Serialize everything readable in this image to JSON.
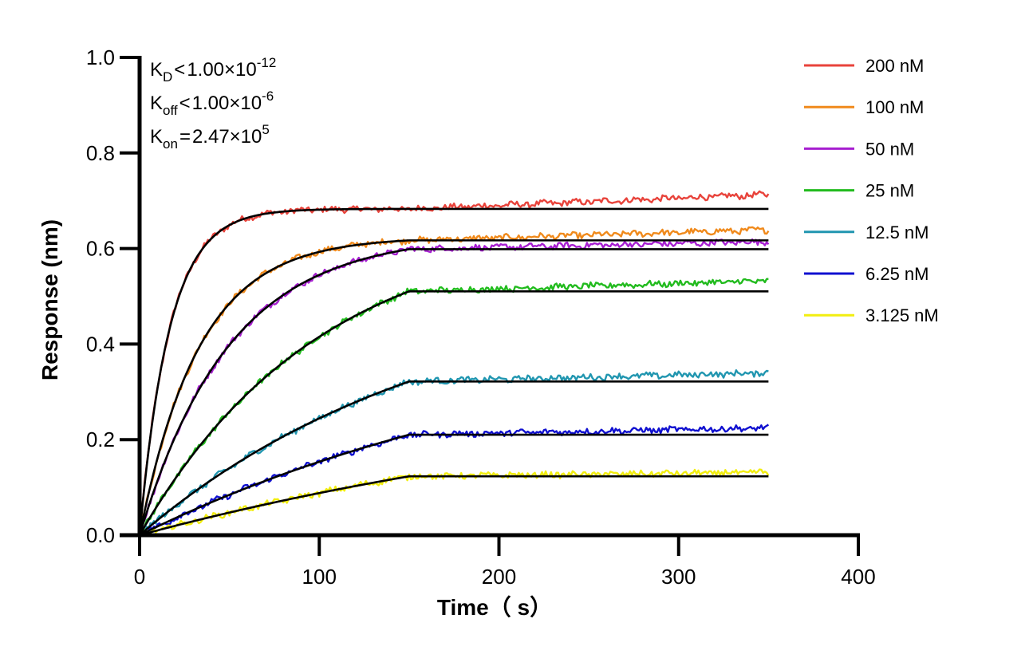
{
  "chart_data": {
    "type": "line",
    "xlabel": "Time（ s）",
    "ylabel": "Response (nm)",
    "xlim": [
      0,
      400
    ],
    "ylim": [
      0,
      1.0
    ],
    "x_ticks": [
      0,
      100,
      200,
      300,
      400
    ],
    "y_ticks": [
      0.0,
      0.2,
      0.4,
      0.6,
      0.8,
      1.0
    ],
    "x_tick_labels": [
      "0",
      "100",
      "200",
      "300",
      "400"
    ],
    "y_tick_labels": [
      "0.0",
      "0.2",
      "0.4",
      "0.6",
      "0.8",
      "1.0"
    ],
    "grid": false,
    "legend_position": "top-right",
    "association_end": 150,
    "x_end": 350,
    "annotations": [
      {
        "main": "K",
        "sub": "D",
        "rel": "<",
        "value": "1.00×10",
        "sup": "-12"
      },
      {
        "main": "K",
        "sub": "off",
        "rel": "<",
        "value": "1.00×10",
        "sup": "-6"
      },
      {
        "main": "K",
        "sub": "on",
        "rel": "=",
        "value": "2.47×10",
        "sup": "5"
      }
    ],
    "series": [
      {
        "name": "200 nM",
        "color": "#e8433b",
        "kobs": 0.06,
        "rmax": 0.683,
        "end_offset": 0.03
      },
      {
        "name": "100 nM",
        "color": "#f08a1c",
        "kobs": 0.03,
        "rmax": 0.624,
        "end_offset": 0.022
      },
      {
        "name": "50 nM",
        "color": "#a61fd0",
        "kobs": 0.02,
        "rmax": 0.63,
        "end_offset": 0.016
      },
      {
        "name": "25 nM",
        "color": "#22bb1e",
        "kobs": 0.01,
        "rmax": 0.657,
        "end_offset": 0.022
      },
      {
        "name": "12.5 nM",
        "color": "#2196b0",
        "kobs": 0.006,
        "rmax": 0.542,
        "end_offset": 0.018
      },
      {
        "name": "6.25 nM",
        "color": "#1010d0",
        "kobs": 0.004,
        "rmax": 0.466,
        "end_offset": 0.014
      },
      {
        "name": "3.125 nM",
        "color": "#f2ee10",
        "kobs": 0.003,
        "rmax": 0.34,
        "end_offset": 0.008
      }
    ]
  }
}
